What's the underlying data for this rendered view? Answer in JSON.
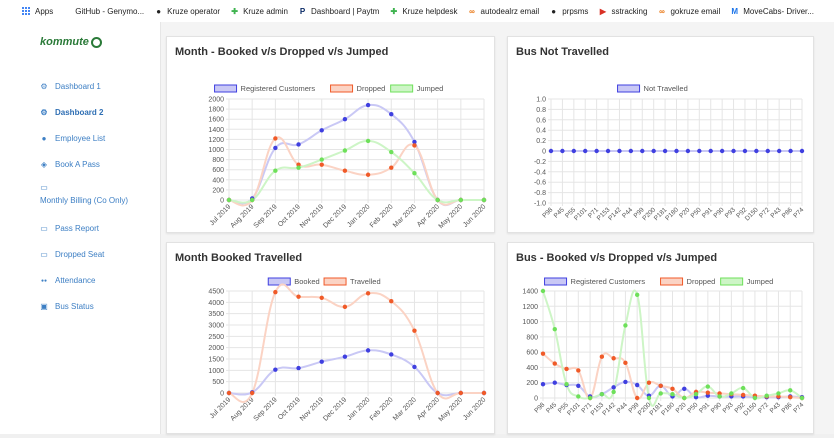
{
  "bookmarks": [
    {
      "label": "Apps",
      "icon": "apps-grid-icon",
      "color": "#4285f4"
    },
    {
      "label": "GitHub - Genymo...",
      "icon": "",
      "color": "#ffffff"
    },
    {
      "label": "Kruze operator",
      "icon": "github-icon",
      "color": "#222222"
    },
    {
      "label": "Kruze admin",
      "icon": "kruze-icon",
      "color": "#3fb34f"
    },
    {
      "label": "Dashboard | Paytm",
      "icon": "paytm-icon",
      "color": "#0a2a66"
    },
    {
      "label": "Kruze helpdesk",
      "icon": "kruze-icon",
      "color": "#3fb34f"
    },
    {
      "label": "autodealrz email",
      "icon": "link-icon",
      "color": "#e8710a"
    },
    {
      "label": "prpsms",
      "icon": "github-icon",
      "color": "#222222"
    },
    {
      "label": "sstracking",
      "icon": "flag-icon",
      "color": "#d93025"
    },
    {
      "label": "gokruze email",
      "icon": "link-icon",
      "color": "#e8710a"
    },
    {
      "label": "MoveCabs- Driver...",
      "icon": "movecabs-icon",
      "color": "#1a73e8"
    }
  ],
  "sidebar": {
    "logo": "kommute",
    "items": [
      {
        "label": "Dashboard 1",
        "icon": "gear-icon",
        "active": false
      },
      {
        "label": "Dashboard 2",
        "icon": "gear-icon",
        "active": true
      },
      {
        "label": "Employee List",
        "icon": "user-icon",
        "active": false
      },
      {
        "label": "Book A Pass",
        "icon": "ticket-icon",
        "active": false
      },
      {
        "label": "Monthly Billing (Co Only)",
        "icon": "card-icon",
        "active": false
      },
      {
        "label": "Pass Report",
        "icon": "card-icon",
        "active": false
      },
      {
        "label": "Dropped Seat",
        "icon": "card-icon",
        "active": false
      },
      {
        "label": "Attendance",
        "icon": "users-icon",
        "active": false
      },
      {
        "label": "Bus Status",
        "icon": "bus-icon",
        "active": false
      }
    ]
  },
  "chart_data": [
    {
      "type": "line",
      "title": "Month - Booked v/s Dropped v/s Jumped",
      "categories": [
        "Jul 2019",
        "Aug 2019",
        "Sep 2019",
        "Oct 2019",
        "Nov 2019",
        "Dec 2019",
        "Jan 2020",
        "Feb 2020",
        "Mar 2020",
        "Apr 2020",
        "May 2020",
        "Jun 2020"
      ],
      "series": [
        {
          "name": "Registered Customers",
          "color": "#3f3fe0",
          "fill": "#c9c8f5",
          "values": [
            0,
            30,
            1030,
            1100,
            1380,
            1600,
            1880,
            1700,
            1150,
            0,
            0,
            0
          ]
        },
        {
          "name": "Dropped",
          "color": "#f05a28",
          "fill": "#fbd3c4",
          "values": [
            0,
            0,
            1220,
            700,
            700,
            580,
            500,
            640,
            1080,
            0,
            0,
            0
          ]
        },
        {
          "name": "Jumped",
          "color": "#6ee05a",
          "fill": "#cdf5c6",
          "values": [
            0,
            0,
            580,
            640,
            800,
            980,
            1170,
            950,
            530,
            0,
            0,
            0
          ]
        }
      ],
      "ylim": [
        0,
        2000
      ],
      "yticks": [
        0,
        200,
        400,
        600,
        800,
        1000,
        1200,
        1400,
        1600,
        1800,
        2000
      ],
      "legend": "top-center",
      "grid": true
    },
    {
      "type": "line",
      "title": "Bus Not Travelled",
      "categories": [
        "P98",
        "P45",
        "P55",
        "P101",
        "P71",
        "P153",
        "P142",
        "P44",
        "P99",
        "P200",
        "P181",
        "P180",
        "P20",
        "P50",
        "P91",
        "P90",
        "P93",
        "P92",
        "D150",
        "P72",
        "P43",
        "P86",
        "P74"
      ],
      "series": [
        {
          "name": "Not Travelled",
          "color": "#3f3fe0",
          "fill": "#c9c8f5",
          "values": [
            0,
            0,
            0,
            0,
            0,
            0,
            0,
            0,
            0,
            0,
            0,
            0,
            0,
            0,
            0,
            0,
            0,
            0,
            0,
            0,
            0,
            0,
            0
          ]
        }
      ],
      "ylim": [
        -1.0,
        1.0
      ],
      "yticks": [
        "1.0",
        "0.8",
        "0.6",
        "0.4",
        "0.2",
        "0",
        "-0.2",
        "-0.4",
        "-0.6",
        "-0.8",
        "-1.0"
      ],
      "legend": "top-center",
      "grid": true
    },
    {
      "type": "line",
      "title": "Month Booked Travelled",
      "categories": [
        "Jul 2019",
        "Aug 2019",
        "Sep 2019",
        "Oct 2019",
        "Nov 2019",
        "Dec 2019",
        "Jan 2020",
        "Feb 2020",
        "Mar 2020",
        "Apr 2020",
        "May 2020",
        "Jun 2020"
      ],
      "series": [
        {
          "name": "Booked",
          "color": "#3f3fe0",
          "fill": "#c9c8f5",
          "values": [
            0,
            30,
            1030,
            1100,
            1380,
            1600,
            1880,
            1700,
            1150,
            0,
            0,
            0
          ]
        },
        {
          "name": "Travelled",
          "color": "#f05a28",
          "fill": "#fbd3c4",
          "values": [
            0,
            0,
            4450,
            4250,
            4200,
            3800,
            4400,
            4050,
            2750,
            0,
            0,
            0
          ]
        }
      ],
      "ylim": [
        0,
        4500
      ],
      "yticks": [
        0,
        500,
        1000,
        1500,
        2000,
        2500,
        3000,
        3500,
        4000,
        4500
      ],
      "legend": "top-center",
      "grid": true
    },
    {
      "type": "line",
      "title": "Bus - Booked v/s Dropped v/s Jumped",
      "categories": [
        "P98",
        "P45",
        "P55",
        "P101",
        "P71",
        "P153",
        "P142",
        "P44",
        "P99",
        "P200",
        "P181",
        "P180",
        "P20",
        "P50",
        "P91",
        "P90",
        "P93",
        "P92",
        "D150",
        "P72",
        "P43",
        "P86",
        "P74"
      ],
      "series": [
        {
          "name": "Registered Customers",
          "color": "#3f3fe0",
          "fill": "#c9c8f5",
          "values": [
            180,
            200,
            170,
            160,
            20,
            50,
            140,
            210,
            170,
            30,
            160,
            20,
            120,
            10,
            30,
            20,
            20,
            20,
            10,
            10,
            10,
            20,
            10
          ]
        },
        {
          "name": "Dropped",
          "color": "#f05a28",
          "fill": "#fbd3c4",
          "values": [
            580,
            450,
            380,
            360,
            0,
            540,
            520,
            460,
            0,
            200,
            160,
            120,
            0,
            80,
            70,
            60,
            50,
            40,
            30,
            20,
            20,
            10,
            0
          ]
        },
        {
          "name": "Jumped",
          "color": "#6ee05a",
          "fill": "#cdf5c6",
          "values": [
            1400,
            900,
            180,
            20,
            0,
            50,
            80,
            950,
            1350,
            0,
            60,
            50,
            0,
            50,
            150,
            20,
            60,
            130,
            0,
            30,
            60,
            100,
            0
          ]
        }
      ],
      "ylim": [
        0,
        1400
      ],
      "yticks": [
        0,
        200,
        400,
        600,
        800,
        1000,
        1200,
        1400
      ],
      "legend": "top-center",
      "grid": true
    }
  ]
}
